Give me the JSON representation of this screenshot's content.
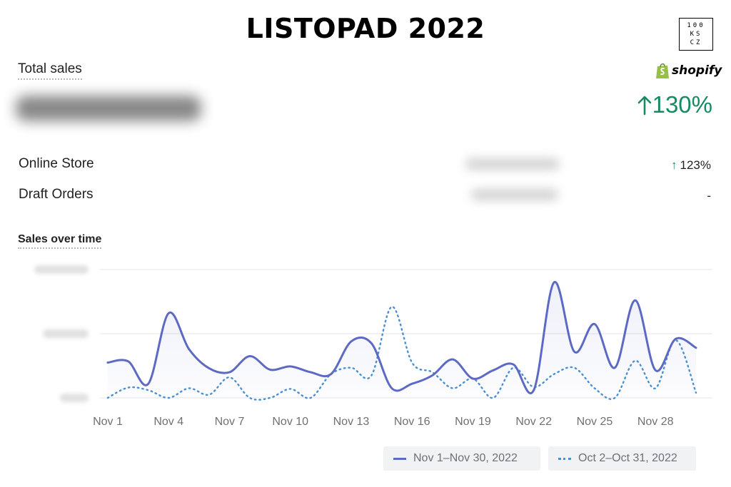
{
  "headline": "LISTOPAD 2022",
  "brand": {
    "line1": "100",
    "line2": "KS",
    "line3": "CZ"
  },
  "shopify_logo": {
    "text": "shopify",
    "icon": "shopping-bag-icon",
    "color": "#95bf47"
  },
  "total_sales": {
    "title": "Total sales",
    "growth": "130%",
    "growth_icon": "arrow-up-icon"
  },
  "channels": [
    {
      "label": "Online Store",
      "change": "123%",
      "change_icon": "arrow-up-icon"
    },
    {
      "label": "Draft Orders",
      "change": "-"
    }
  ],
  "sales_over_time": {
    "title": "Sales over time",
    "legend": [
      {
        "label": "Nov 1–Nov 30, 2022",
        "style": "solid",
        "color": "#5c6ac4"
      },
      {
        "label": "Oct 2–Oct 31, 2022",
        "style": "dotted",
        "color": "#4a8fd1"
      }
    ]
  },
  "colors": {
    "accent_green": "#168a62",
    "current_series": "#5c6ac4",
    "previous_series": "#4a8fd1"
  },
  "chart_data": {
    "type": "line",
    "title": "Sales over time",
    "x_tick_labels": [
      "Nov 1",
      "Nov 4",
      "Nov 7",
      "Nov 10",
      "Nov 13",
      "Nov 16",
      "Nov 19",
      "Nov 22",
      "Nov 25",
      "Nov 28"
    ],
    "x": [
      1,
      2,
      3,
      4,
      5,
      6,
      7,
      8,
      9,
      10,
      11,
      12,
      13,
      14,
      15,
      16,
      17,
      18,
      19,
      20,
      21,
      22,
      23,
      24,
      25,
      26,
      27,
      28,
      29,
      30
    ],
    "ylim": [
      0,
      2
    ],
    "y_tick_values_obscured": true,
    "grid": "horizontal",
    "series": [
      {
        "name": "Nov 1–Nov 30, 2022",
        "values": [
          0.55,
          0.57,
          0.22,
          1.32,
          0.76,
          0.46,
          0.4,
          0.65,
          0.44,
          0.49,
          0.4,
          0.37,
          0.88,
          0.85,
          0.15,
          0.22,
          0.35,
          0.6,
          0.3,
          0.43,
          0.52,
          0.12,
          1.8,
          0.72,
          1.15,
          0.47,
          1.52,
          0.43,
          0.92,
          0.78
        ]
      },
      {
        "name": "Oct 2–Oct 31, 2022",
        "values": [
          0.0,
          0.16,
          0.12,
          0.0,
          0.15,
          0.05,
          0.32,
          0.0,
          0.0,
          0.14,
          0.0,
          0.37,
          0.47,
          0.35,
          1.42,
          0.55,
          0.4,
          0.15,
          0.3,
          0.0,
          0.47,
          0.17,
          0.37,
          0.47,
          0.15,
          0.0,
          0.58,
          0.15,
          0.9,
          0.08
        ]
      }
    ]
  }
}
